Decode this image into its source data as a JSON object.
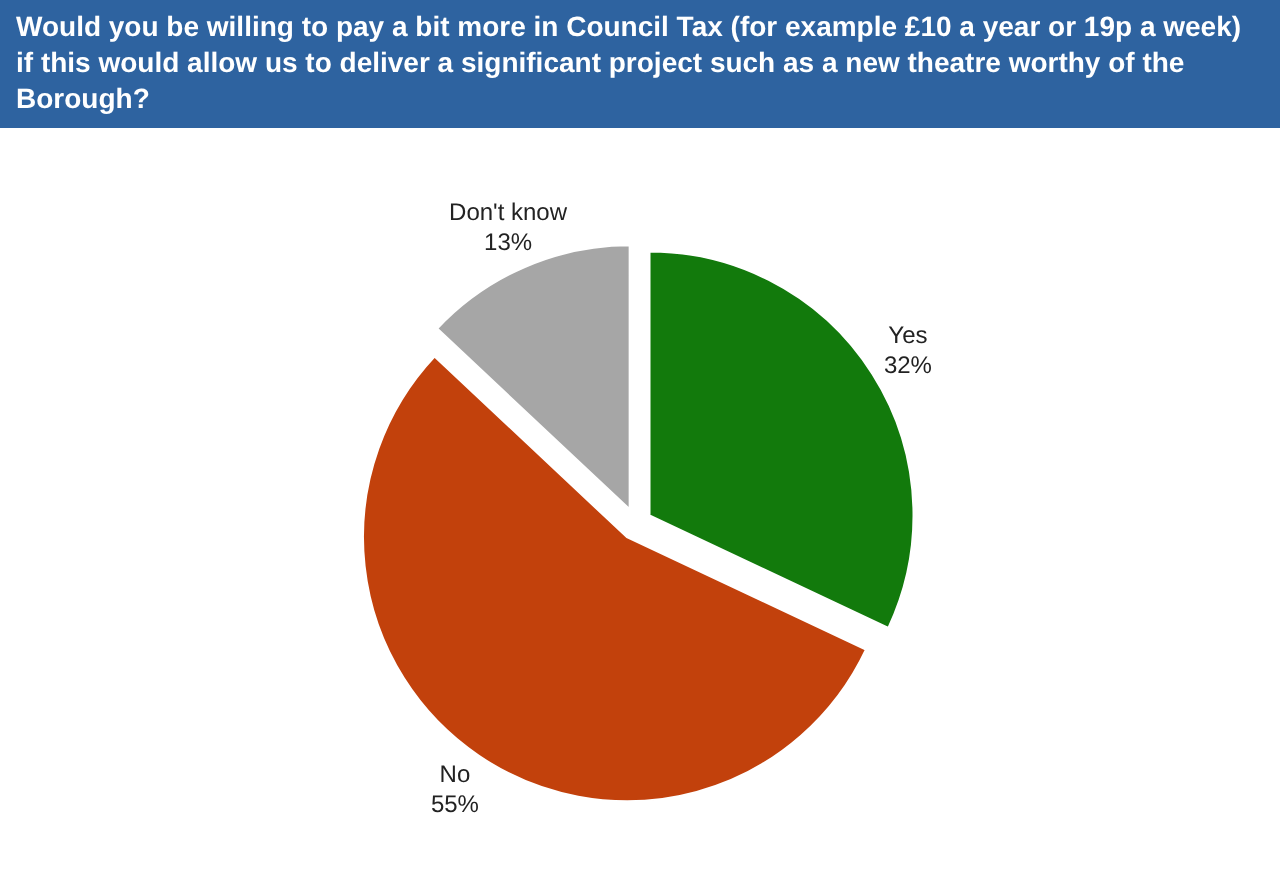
{
  "chart_data": {
    "type": "pie",
    "title": "Would you be willing to pay a bit more in Council Tax (for example £10 a year or 19p a week) if this would allow us to deliver a significant project such as a new theatre worthy of the Borough?",
    "categories": [
      "Yes",
      "No",
      "Don't know"
    ],
    "values": [
      32,
      55,
      13
    ],
    "value_labels": [
      "32%",
      "55%",
      "13%"
    ],
    "colors": [
      "#127a0c",
      "#c2410c",
      "#a6a6a6"
    ]
  }
}
